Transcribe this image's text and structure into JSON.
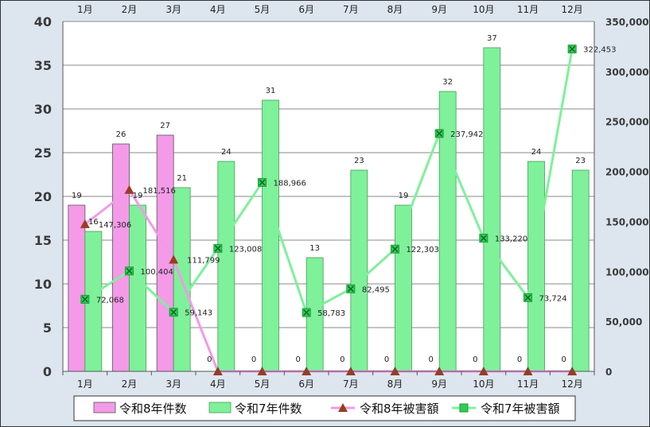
{
  "chart_data": {
    "type": "bar",
    "categories": [
      "1月",
      "2月",
      "3月",
      "4月",
      "5月",
      "6月",
      "7月",
      "8月",
      "9月",
      "10月",
      "11月",
      "12月"
    ],
    "series": [
      {
        "name": "令和8年件数",
        "kind": "bar",
        "axis": "left",
        "color": "#f49ae8",
        "values": [
          19,
          26,
          27,
          0,
          0,
          0,
          0,
          0,
          0,
          0,
          0,
          0
        ],
        "show_bar": [
          true,
          true,
          true,
          false,
          false,
          false,
          false,
          false,
          false,
          false,
          false,
          false
        ]
      },
      {
        "name": "令和7年件数",
        "kind": "bar",
        "axis": "left",
        "color": "#7ef19a",
        "values": [
          16,
          19,
          21,
          24,
          31,
          13,
          23,
          19,
          32,
          37,
          24,
          23
        ]
      },
      {
        "name": "令和8年被害額",
        "kind": "line",
        "axis": "right",
        "color": "#f09be8",
        "marker": "triangle",
        "marker_color": "#9a3c22",
        "values": [
          147306,
          181516,
          111799,
          0,
          0,
          0,
          0,
          0,
          0,
          0,
          0,
          0
        ]
      },
      {
        "name": "令和7年被害額",
        "kind": "line",
        "axis": "right",
        "color": "#7ef19a",
        "marker": "x-square",
        "marker_color": "#1f9a3a",
        "values": [
          72068,
          100404,
          59143,
          123008,
          188966,
          58783,
          82495,
          122303,
          237942,
          133220,
          73724,
          322453
        ]
      }
    ],
    "value_labels": {
      "bar1": [
        "19",
        "26",
        "27",
        "0",
        "0",
        "0",
        "0",
        "0",
        "0",
        "0",
        "0",
        "0"
      ],
      "bar2": [
        "16",
        "19",
        "21",
        "24",
        "31",
        "13",
        "23",
        "19",
        "32",
        "37",
        "24",
        "23"
      ],
      "line1": [
        "147,306",
        "181,516",
        "111,799",
        "",
        "",
        "",
        "",
        "",
        "",
        "",
        "",
        ""
      ],
      "line2": [
        "72,068",
        "100,404",
        "59,143",
        "123,008",
        "188,966",
        "58,783",
        "82,495",
        "122,303",
        "237,942",
        "133,220",
        "73,724",
        "322,453"
      ]
    },
    "y_left": {
      "min": 0,
      "max": 40,
      "step": 5,
      "ticks": [
        "0",
        "5",
        "10",
        "15",
        "20",
        "25",
        "30",
        "35",
        "40"
      ]
    },
    "y_right": {
      "min": 0,
      "max": 350000,
      "step": 50000,
      "ticks": [
        "0",
        "50,000",
        "100,000",
        "150,000",
        "200,000",
        "250,000",
        "300,000",
        "350,000"
      ]
    },
    "grid": true,
    "legend_position": "bottom"
  }
}
